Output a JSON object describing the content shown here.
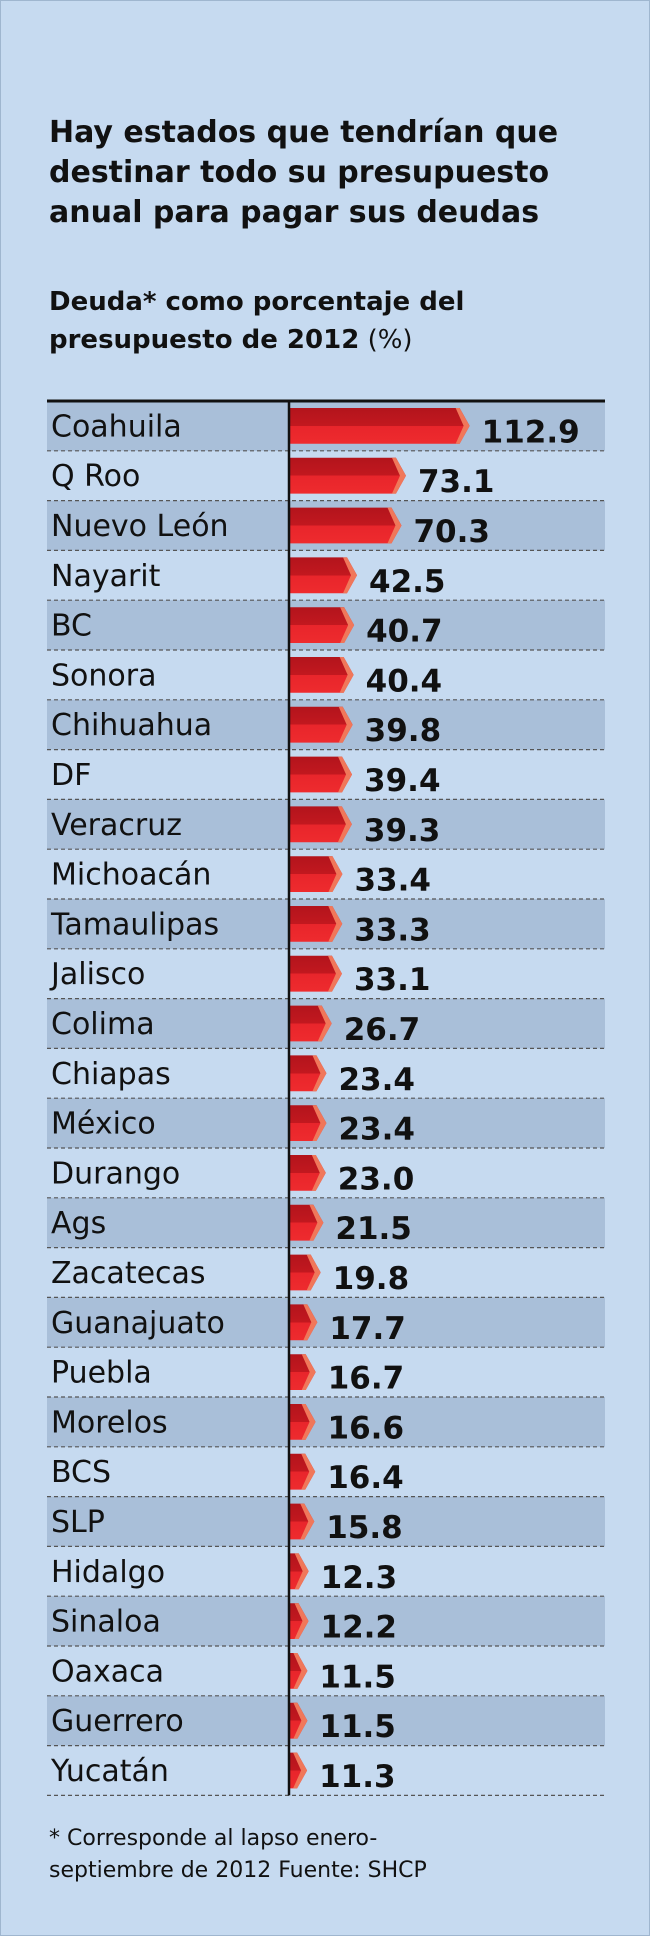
{
  "chart_data": {
    "type": "barh",
    "title": "Hay estados que tendrían que destinar todo su presupuesto anual para pagar sus deudas",
    "subtitle": "Deuda* como porcentaje del presupuesto de 2012",
    "unit": "(%)",
    "footnote": "* Corresponde al lapso enero-septiembre de 2012 Fuente: SHCP",
    "color": "#d91f26",
    "categories": [
      "Coahuila",
      "Q Roo",
      "Nuevo León",
      "Nayarit",
      "BC",
      "Sonora",
      "Chihuahua",
      "DF",
      "Veracruz",
      "Michoacán",
      "Tamaulipas",
      "Jalisco",
      "Colima",
      "Chiapas",
      "México",
      "Durango",
      "Ags",
      "Zacatecas",
      "Guanajuato",
      "Puebla",
      "Morelos",
      "BCS",
      "SLP",
      "Hidalgo",
      "Sinaloa",
      "Oaxaca",
      "Guerrero",
      "Yucatán"
    ],
    "values": [
      112.9,
      73.1,
      70.3,
      42.5,
      40.7,
      40.4,
      39.8,
      39.4,
      39.3,
      33.4,
      33.3,
      33.1,
      26.7,
      23.4,
      23.4,
      23.0,
      21.5,
      19.8,
      17.7,
      16.7,
      16.6,
      16.4,
      15.8,
      12.3,
      12.2,
      11.5,
      11.5,
      11.3
    ],
    "value_labels": [
      "112.9",
      "73.1",
      "70.3",
      "42.5",
      "40.7",
      "40.4",
      "39.8",
      "39.4",
      "39.3",
      "33.4",
      "33.3",
      "33.1",
      "26.7",
      "23.4",
      "23.4",
      "23.0",
      "21.5",
      "19.8",
      "17.7",
      "16.7",
      "16.6",
      "16.4",
      "15.8",
      "12.3",
      "12.2",
      "11.5",
      "11.5",
      "11.3"
    ]
  }
}
